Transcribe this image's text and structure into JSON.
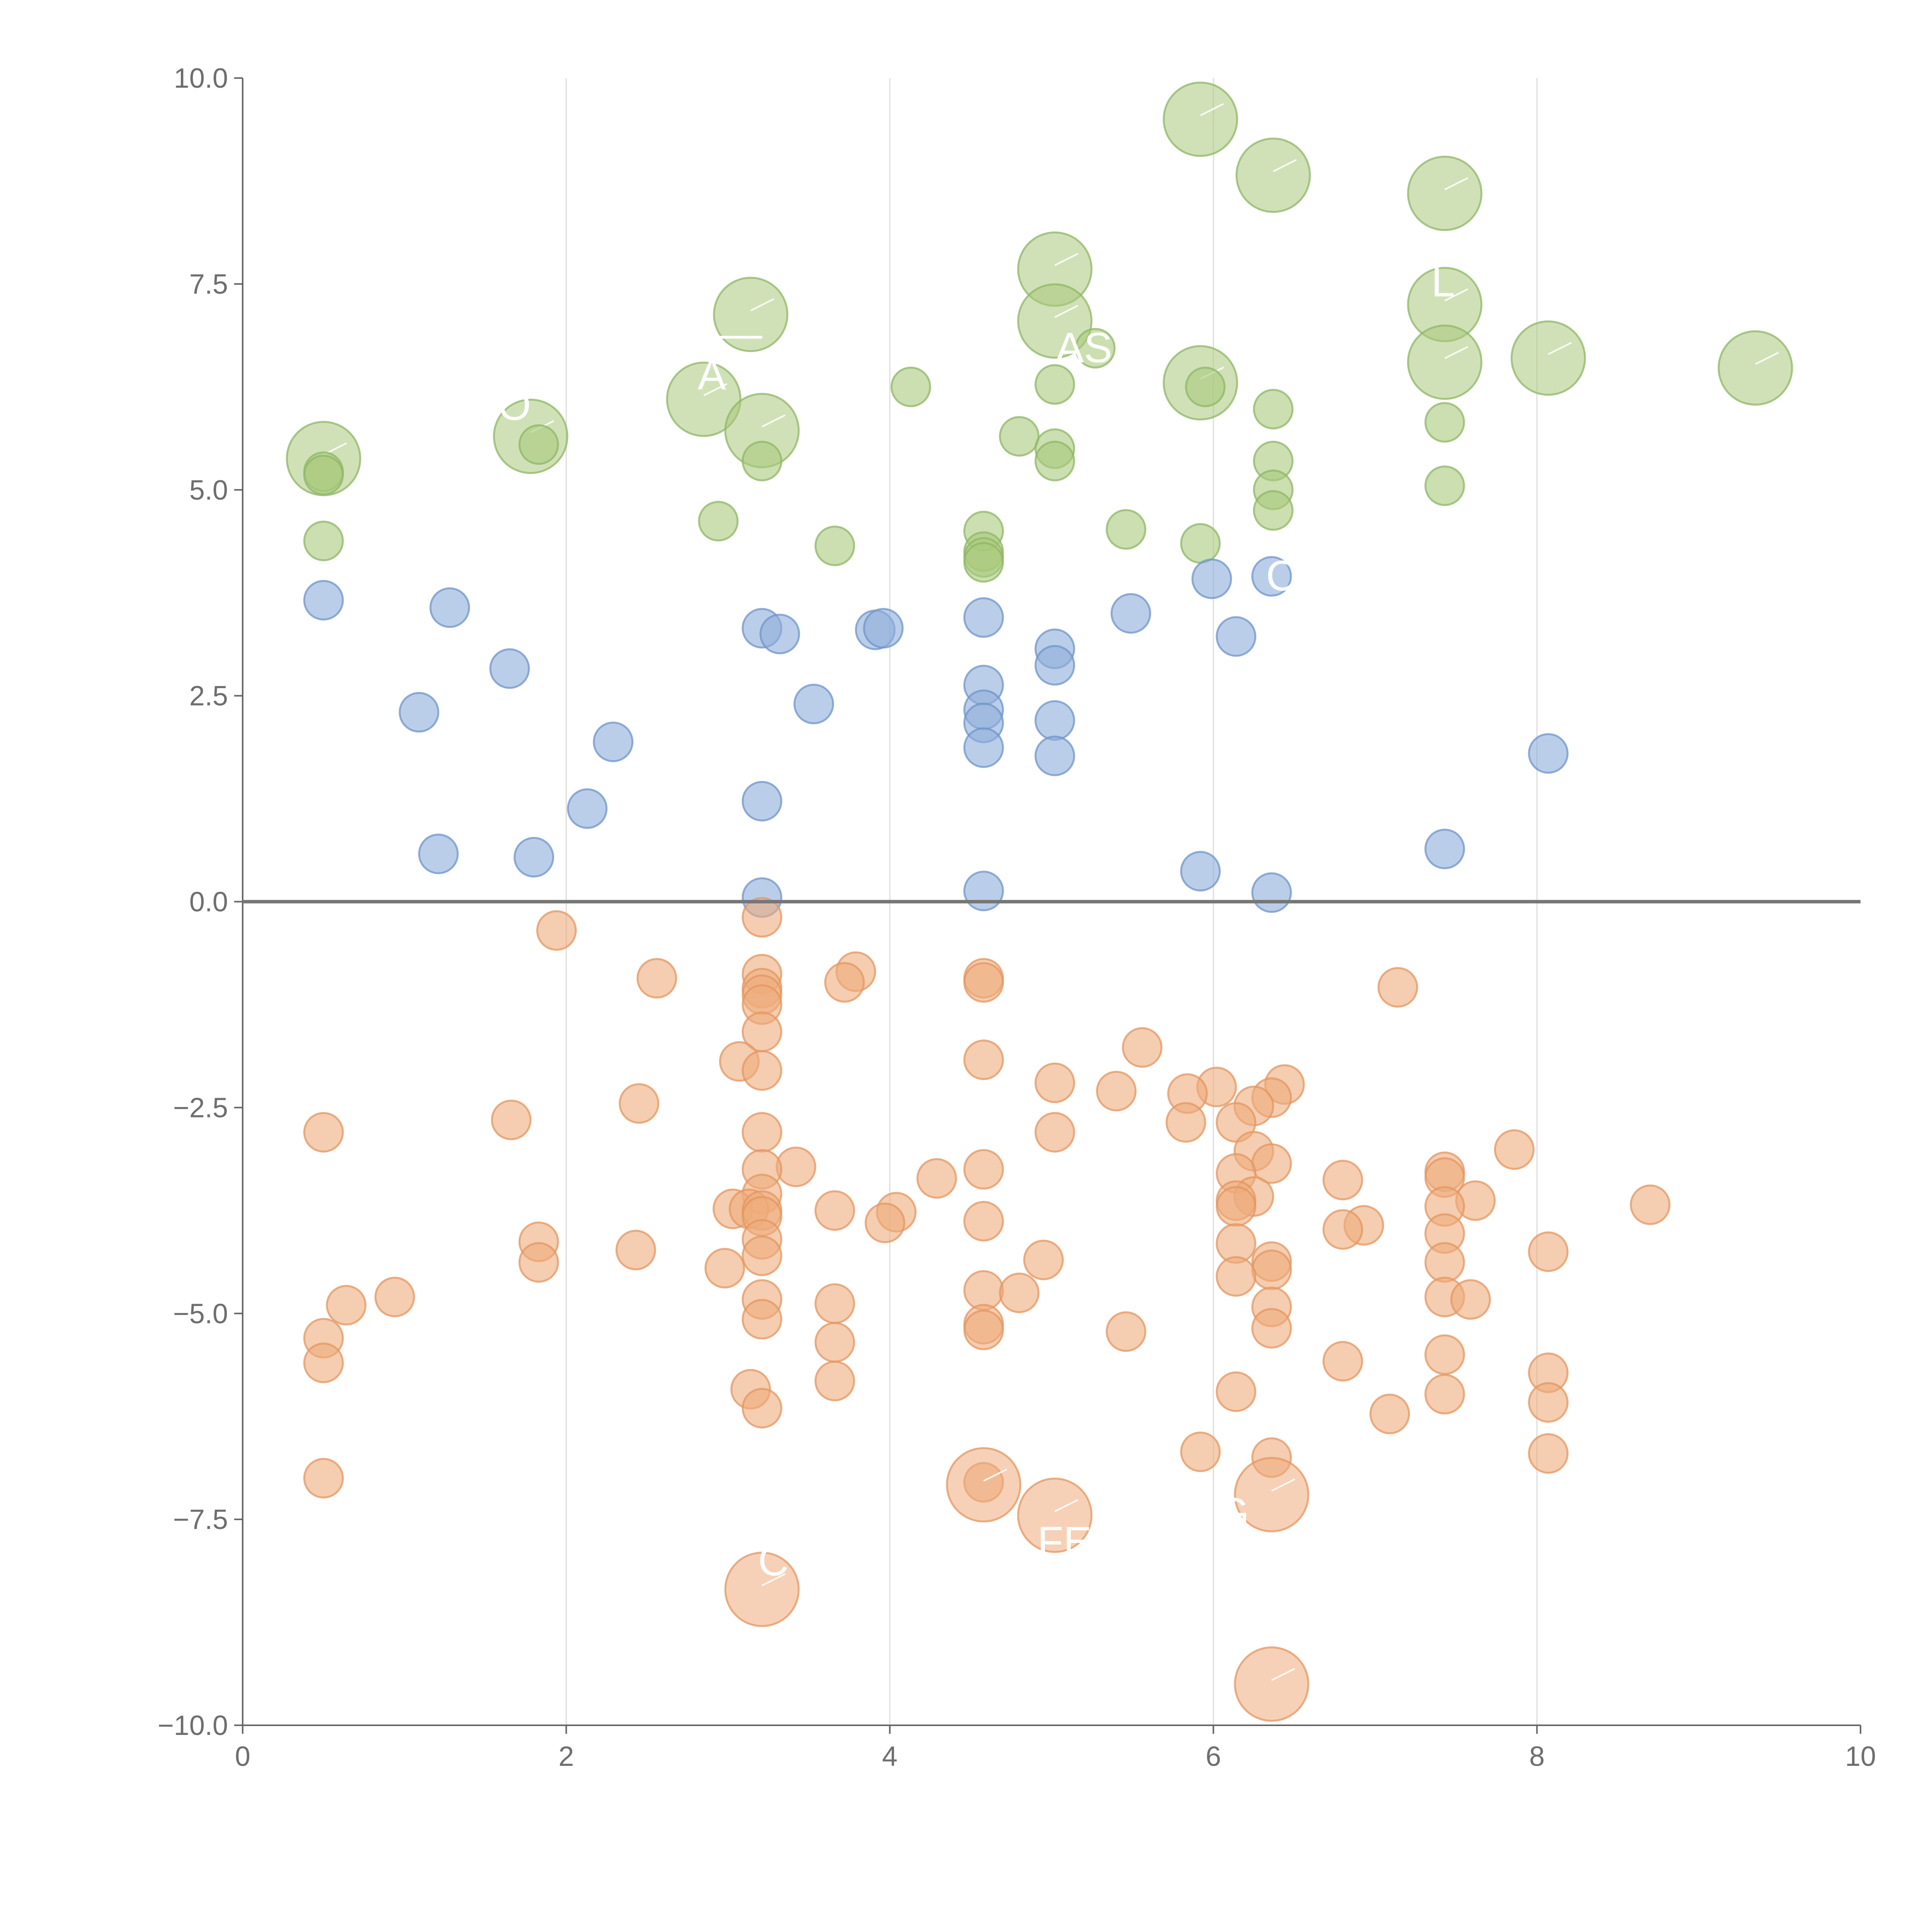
{
  "chart_data": {
    "type": "scatter",
    "title": "",
    "xlabel": "",
    "ylabel": "",
    "xlim": [
      0,
      10
    ],
    "ylim": [
      -10,
      10
    ],
    "x_ticks": [
      "0",
      "2",
      "4",
      "6",
      "8",
      "10"
    ],
    "y_ticks": [
      "10.0",
      "7.5",
      "5.0",
      "2.5",
      "0.0",
      "−2.5",
      "−5.0",
      "−7.5",
      "−10.0"
    ],
    "x_tick_values": [
      0,
      2,
      4,
      6,
      8,
      10
    ],
    "y_tick_values": [
      10,
      7.5,
      5,
      2.5,
      0,
      -2.5,
      -5,
      -7.5,
      -10
    ],
    "grid": "vertical",
    "reference_line_y": 0,
    "series": [
      {
        "name": "green",
        "color": "#a9c97c",
        "edge": "#8fb566",
        "points": [
          [
            5.92,
            9.5,
            2
          ],
          [
            6.37,
            8.82,
            2
          ],
          [
            7.43,
            8.6,
            2
          ],
          [
            5.02,
            7.68,
            2
          ],
          [
            3.14,
            7.13,
            2
          ],
          [
            5.02,
            7.05,
            2
          ],
          [
            7.43,
            7.25,
            2
          ],
          [
            5.27,
            6.72,
            1
          ],
          [
            7.43,
            6.55,
            2
          ],
          [
            8.07,
            6.6,
            2
          ],
          [
            9.35,
            6.48,
            2
          ],
          [
            5.92,
            6.3,
            2
          ],
          [
            2.85,
            6.1,
            2
          ],
          [
            3.21,
            5.72,
            2
          ],
          [
            1.78,
            5.65,
            2
          ],
          [
            0.5,
            5.38,
            2
          ],
          [
            4.13,
            6.25,
            1
          ],
          [
            5.02,
            6.28,
            1
          ],
          [
            5.95,
            6.25,
            1
          ],
          [
            6.37,
            5.98,
            1
          ],
          [
            7.43,
            5.82,
            1
          ],
          [
            1.83,
            5.55,
            1
          ],
          [
            4.8,
            5.65,
            1
          ],
          [
            5.02,
            5.5,
            1
          ],
          [
            5.02,
            5.35,
            1
          ],
          [
            3.21,
            5.35,
            1
          ],
          [
            6.37,
            5.35,
            1
          ],
          [
            0.5,
            5.22,
            1
          ],
          [
            0.5,
            5.18,
            1
          ],
          [
            7.43,
            5.05,
            1
          ],
          [
            6.37,
            5.0,
            1
          ],
          [
            6.37,
            4.75,
            1
          ],
          [
            2.94,
            4.62,
            1
          ],
          [
            5.46,
            4.52,
            1
          ],
          [
            4.58,
            4.5,
            1
          ],
          [
            0.5,
            4.38,
            1
          ],
          [
            3.66,
            4.32,
            1
          ],
          [
            5.92,
            4.35,
            1
          ],
          [
            4.58,
            4.25,
            1
          ],
          [
            4.58,
            4.18,
            1
          ],
          [
            4.58,
            4.12,
            1
          ]
        ]
      },
      {
        "name": "blue",
        "color": "#8eaedb",
        "edge": "#6f94c8",
        "points": [
          [
            5.99,
            3.92,
            1
          ],
          [
            6.36,
            3.95,
            1
          ],
          [
            0.5,
            3.66,
            1
          ],
          [
            1.28,
            3.57,
            1
          ],
          [
            4.58,
            3.45,
            1
          ],
          [
            5.49,
            3.5,
            1
          ],
          [
            3.21,
            3.32,
            1
          ],
          [
            3.32,
            3.25,
            1
          ],
          [
            3.91,
            3.3,
            1
          ],
          [
            3.96,
            3.32,
            1
          ],
          [
            6.14,
            3.22,
            1
          ],
          [
            5.02,
            3.07,
            1
          ],
          [
            5.02,
            2.87,
            1
          ],
          [
            1.65,
            2.83,
            1
          ],
          [
            4.58,
            2.63,
            1
          ],
          [
            3.53,
            2.4,
            1
          ],
          [
            1.09,
            2.3,
            1
          ],
          [
            4.58,
            2.33,
            1
          ],
          [
            4.58,
            2.17,
            1
          ],
          [
            5.02,
            2.2,
            1
          ],
          [
            2.29,
            1.94,
            1
          ],
          [
            4.58,
            1.87,
            1
          ],
          [
            5.02,
            1.77,
            1
          ],
          [
            8.07,
            1.8,
            1
          ],
          [
            3.21,
            1.22,
            1
          ],
          [
            2.13,
            1.13,
            1
          ],
          [
            7.43,
            0.64,
            1
          ],
          [
            1.21,
            0.58,
            1
          ],
          [
            1.8,
            0.54,
            1
          ],
          [
            5.92,
            0.37,
            1
          ],
          [
            4.58,
            0.13,
            1
          ],
          [
            6.36,
            0.11,
            1
          ],
          [
            3.21,
            0.05,
            1
          ]
        ]
      },
      {
        "name": "orange",
        "color": "#eeab7c",
        "edge": "#e39560",
        "points": [
          [
            3.21,
            -0.19,
            1
          ],
          [
            1.94,
            -0.35,
            1
          ],
          [
            3.79,
            -0.85,
            1
          ],
          [
            2.56,
            -0.93,
            1
          ],
          [
            3.21,
            -0.88,
            1
          ],
          [
            3.72,
            -0.98,
            1
          ],
          [
            4.58,
            -0.93,
            1
          ],
          [
            4.58,
            -0.98,
            1
          ],
          [
            7.14,
            -1.04,
            1
          ],
          [
            3.21,
            -1.05,
            1
          ],
          [
            3.21,
            -1.13,
            1
          ],
          [
            3.21,
            -1.25,
            1
          ],
          [
            3.21,
            -1.58,
            1
          ],
          [
            5.56,
            -1.77,
            1
          ],
          [
            3.07,
            -1.94,
            1
          ],
          [
            3.21,
            -2.05,
            1
          ],
          [
            4.58,
            -1.92,
            1
          ],
          [
            5.02,
            -2.2,
            1
          ],
          [
            6.02,
            -2.25,
            1
          ],
          [
            6.44,
            -2.22,
            1
          ],
          [
            5.4,
            -2.3,
            1
          ],
          [
            5.84,
            -2.33,
            1
          ],
          [
            6.36,
            -2.38,
            1
          ],
          [
            6.25,
            -2.48,
            1
          ],
          [
            2.45,
            -2.45,
            1
          ],
          [
            5.83,
            -2.68,
            1
          ],
          [
            6.14,
            -2.68,
            1
          ],
          [
            1.66,
            -2.65,
            1
          ],
          [
            0.5,
            -2.8,
            1
          ],
          [
            3.21,
            -2.8,
            1
          ],
          [
            5.02,
            -2.8,
            1
          ],
          [
            7.86,
            -3.01,
            1
          ],
          [
            6.25,
            -3.03,
            1
          ],
          [
            6.36,
            -3.18,
            1
          ],
          [
            3.42,
            -3.22,
            1
          ],
          [
            4.58,
            -3.25,
            1
          ],
          [
            3.21,
            -3.25,
            1
          ],
          [
            6.14,
            -3.3,
            1
          ],
          [
            7.43,
            -3.28,
            1
          ],
          [
            7.43,
            -3.35,
            1
          ],
          [
            4.29,
            -3.36,
            1
          ],
          [
            6.8,
            -3.38,
            1
          ],
          [
            3.21,
            -3.55,
            1
          ],
          [
            6.25,
            -3.58,
            1
          ],
          [
            6.14,
            -3.63,
            1
          ],
          [
            6.14,
            -3.7,
            1
          ],
          [
            7.62,
            -3.63,
            1
          ],
          [
            8.7,
            -3.68,
            1
          ],
          [
            7.43,
            -3.7,
            1
          ],
          [
            3.03,
            -3.73,
            1
          ],
          [
            3.13,
            -3.73,
            1
          ],
          [
            3.21,
            -3.75,
            1
          ],
          [
            3.66,
            -3.75,
            1
          ],
          [
            3.21,
            -3.82,
            1
          ],
          [
            4.04,
            -3.77,
            1
          ],
          [
            3.97,
            -3.9,
            1
          ],
          [
            4.58,
            -3.88,
            1
          ],
          [
            6.93,
            -3.93,
            1
          ],
          [
            6.8,
            -3.98,
            1
          ],
          [
            7.43,
            -4.03,
            1
          ],
          [
            1.83,
            -4.13,
            1
          ],
          [
            3.21,
            -4.1,
            1
          ],
          [
            6.14,
            -4.15,
            1
          ],
          [
            2.43,
            -4.23,
            1
          ],
          [
            8.07,
            -4.25,
            1
          ],
          [
            3.21,
            -4.3,
            1
          ],
          [
            1.83,
            -4.38,
            1
          ],
          [
            4.95,
            -4.35,
            1
          ],
          [
            6.36,
            -4.37,
            1
          ],
          [
            7.43,
            -4.38,
            1
          ],
          [
            2.98,
            -4.45,
            1
          ],
          [
            6.36,
            -4.47,
            1
          ],
          [
            6.14,
            -4.55,
            1
          ],
          [
            4.58,
            -4.72,
            1
          ],
          [
            4.8,
            -4.75,
            1
          ],
          [
            7.43,
            -4.8,
            1
          ],
          [
            7.59,
            -4.83,
            1
          ],
          [
            3.21,
            -4.83,
            1
          ],
          [
            0.94,
            -4.8,
            1
          ],
          [
            0.64,
            -4.9,
            1
          ],
          [
            3.66,
            -4.88,
            1
          ],
          [
            6.36,
            -4.92,
            1
          ],
          [
            3.21,
            -5.07,
            1
          ],
          [
            4.58,
            -5.13,
            1
          ],
          [
            4.58,
            -5.2,
            1
          ],
          [
            6.36,
            -5.18,
            1
          ],
          [
            5.46,
            -5.22,
            1
          ],
          [
            0.5,
            -5.3,
            1
          ],
          [
            3.66,
            -5.35,
            1
          ],
          [
            7.43,
            -5.5,
            1
          ],
          [
            0.5,
            -5.6,
            1
          ],
          [
            6.8,
            -5.58,
            1
          ],
          [
            8.07,
            -5.72,
            1
          ],
          [
            3.66,
            -5.82,
            1
          ],
          [
            3.14,
            -5.92,
            1
          ],
          [
            6.14,
            -5.95,
            1
          ],
          [
            7.43,
            -5.98,
            1
          ],
          [
            8.07,
            -6.08,
            1
          ],
          [
            3.21,
            -6.15,
            1
          ],
          [
            7.09,
            -6.22,
            1
          ],
          [
            5.92,
            -6.68,
            1
          ],
          [
            8.07,
            -6.7,
            1
          ],
          [
            6.36,
            -6.75,
            1
          ],
          [
            0.5,
            -7.0,
            1
          ],
          [
            4.58,
            -7.05,
            1
          ],
          [
            4.58,
            -7.08,
            2
          ],
          [
            6.36,
            -7.2,
            2
          ],
          [
            5.02,
            -7.45,
            2
          ],
          [
            3.21,
            -8.35,
            2
          ],
          [
            6.36,
            -9.5,
            2
          ]
        ]
      }
    ],
    "labels": [
      {
        "text": "Ò",
        "x": 1.68,
        "y": 5.85
      },
      {
        "text": "—",
        "x": 3.08,
        "y": 6.72
      },
      {
        "text": "Â",
        "x": 2.9,
        "y": 6.22
      },
      {
        "text": "AS",
        "x": 5.2,
        "y": 6.55
      },
      {
        "text": "'",
        "x": 5.82,
        "y": 6.55
      },
      {
        "text": "'",
        "x": 6.41,
        "y": 9.22
      },
      {
        "text": "L",
        "x": 7.42,
        "y": 7.35
      },
      {
        "text": "'",
        "x": 9.32,
        "y": 6.7
      },
      {
        "text": "C",
        "x": 6.42,
        "y": 3.78
      },
      {
        "text": "'",
        "x": 4.68,
        "y": -6.75
      },
      {
        "text": "FE",
        "x": 5.08,
        "y": -7.95
      },
      {
        "text": "G",
        "x": 6.12,
        "y": -7.6
      },
      {
        "text": "C",
        "x": 3.28,
        "y": -8.18
      }
    ]
  }
}
